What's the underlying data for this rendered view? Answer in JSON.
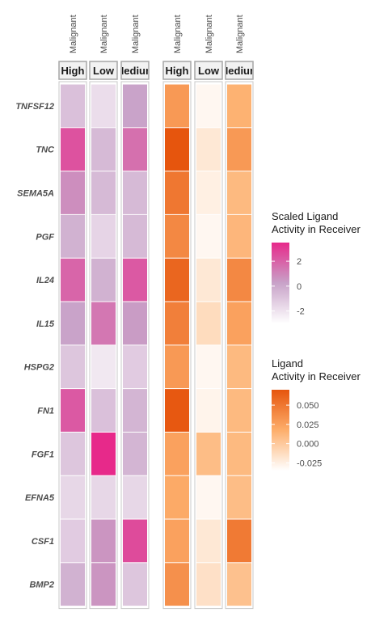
{
  "chart_data": {
    "type": "heatmap",
    "rows": [
      "TNFSF12",
      "TNC",
      "SEMA5A",
      "PGF",
      "IL24",
      "IL15",
      "HSPG2",
      "FN1",
      "FGF1",
      "EFNA5",
      "CSF1",
      "BMP2"
    ],
    "heatmaps": [
      {
        "name": "Scaled Ligand Activity in Receiver",
        "columns": [
          {
            "top": "Malignant",
            "label": "High"
          },
          {
            "top": "Malignant",
            "label": "Low"
          },
          {
            "top": "Malignant",
            "label": "Medium"
          }
        ],
        "values": [
          [
            -0.8,
            -1.8,
            0.2
          ],
          [
            2.4,
            -0.6,
            1.6
          ],
          [
            0.8,
            -0.6,
            -0.6
          ],
          [
            -0.3,
            -1.5,
            -0.6
          ],
          [
            1.9,
            -0.3,
            2.2
          ],
          [
            0.2,
            1.4,
            0.4
          ],
          [
            -1.0,
            -2.2,
            -1.2
          ],
          [
            2.2,
            -0.8,
            -0.4
          ],
          [
            -1.0,
            3.5,
            -0.4
          ],
          [
            -1.6,
            -1.6,
            -1.6
          ],
          [
            -1.2,
            0.6,
            2.6
          ],
          [
            -0.3,
            0.6,
            -1.0
          ]
        ],
        "colors": {
          "low": "#ffffff",
          "mid": "#c8a2c8",
          "high": "#e7298a"
        },
        "legend": {
          "title": [
            "Scaled Ligand",
            "Activity in Receiver"
          ],
          "ticks": [
            2,
            0,
            -2
          ],
          "range": [
            -3,
            3.5
          ]
        }
      },
      {
        "name": "Ligand Activity in Receiver",
        "columns": [
          {
            "top": "Malignant",
            "label": "High"
          },
          {
            "top": "Malignant",
            "label": "Low"
          },
          {
            "top": "Malignant",
            "label": "Medium"
          }
        ],
        "values": [
          [
            0.03,
            -0.03,
            0.015
          ],
          [
            0.07,
            -0.02,
            0.03
          ],
          [
            0.05,
            -0.025,
            0.01
          ],
          [
            0.04,
            -0.03,
            0.012
          ],
          [
            0.06,
            -0.02,
            0.04
          ],
          [
            0.045,
            -0.012,
            0.025
          ],
          [
            0.03,
            -0.03,
            0.01
          ],
          [
            0.068,
            -0.028,
            0.01
          ],
          [
            0.025,
            0.008,
            0.01
          ],
          [
            0.02,
            -0.03,
            0.008
          ],
          [
            0.025,
            -0.02,
            0.048
          ],
          [
            0.035,
            -0.015,
            0.005
          ]
        ],
        "colors": {
          "low": "#ffffff",
          "mid": "#fdae6b",
          "high": "#e6550d"
        },
        "legend": {
          "title": [
            "Ligand",
            "Activity in Receiver"
          ],
          "ticks": [
            0.05,
            0.025,
            0.0,
            -0.025
          ],
          "range": [
            -0.035,
            0.07
          ]
        }
      }
    ]
  }
}
